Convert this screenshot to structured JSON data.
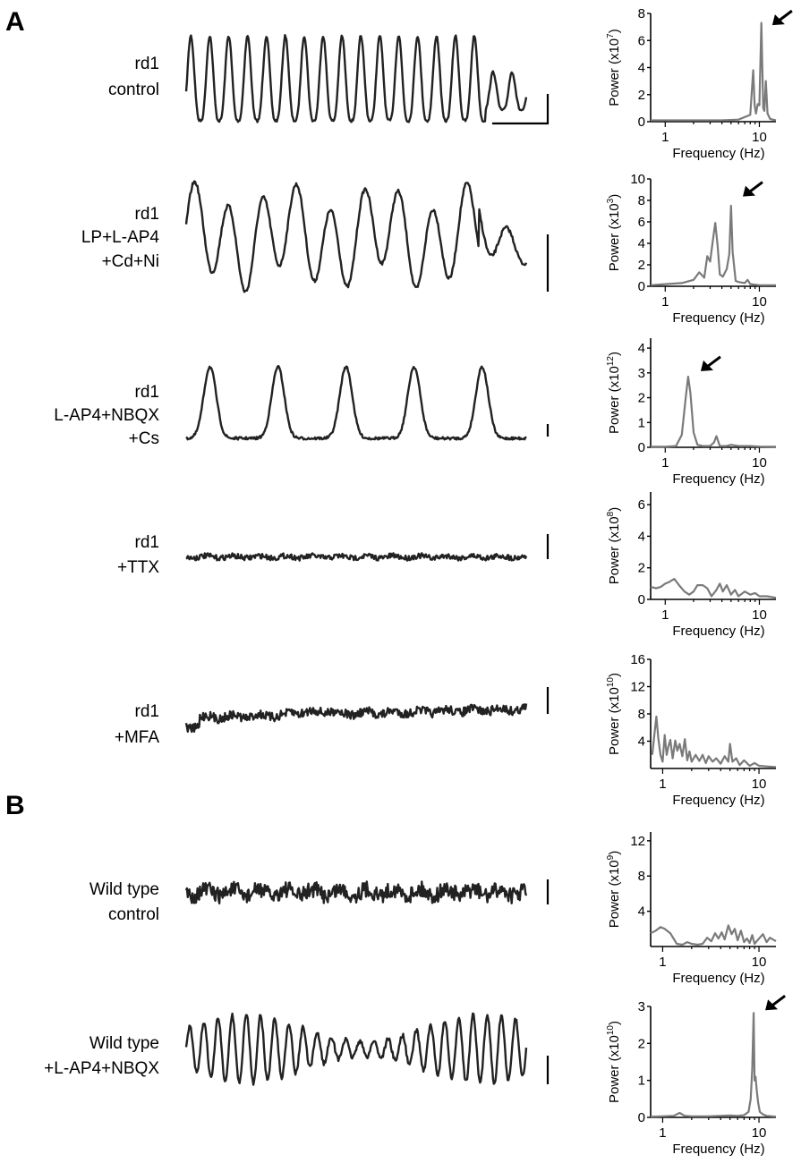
{
  "figure": {
    "panel_labels": [
      "A",
      "B"
    ]
  },
  "chart_data": [
    {
      "type": "line",
      "id": "rd1-control",
      "condition": [
        "rd1",
        "control"
      ],
      "ylabel_base": "Power (x10",
      "ylabel_exp": "7",
      "ylabel_end": ")",
      "xlabel": "Frequency (Hz)",
      "xscale": "log",
      "xlim": [
        0.7,
        15
      ],
      "xticks": [
        1,
        10
      ],
      "ylim": [
        0,
        8
      ],
      "yticks": [
        0,
        2,
        4,
        6,
        8
      ],
      "arrow_at": [
        11.5,
        7.0
      ],
      "arrow_text": "",
      "trace": {
        "kind": "osc",
        "cycles": 18,
        "burst_at_end": true
      },
      "scale_bar": "L",
      "series": [
        {
          "x": [
            0.7,
            1,
            2,
            4,
            6,
            8,
            8.6,
            8.9,
            9.2,
            9.6,
            10.0,
            10.5,
            11.0,
            11.3,
            11.7,
            12.2,
            13,
            15
          ],
          "y": [
            0.1,
            0.1,
            0.1,
            0.1,
            0.15,
            0.5,
            3.8,
            1.2,
            0.6,
            1.3,
            1.2,
            7.3,
            1.0,
            0.8,
            3.0,
            0.6,
            0.2,
            0.1
          ]
        }
      ]
    },
    {
      "type": "line",
      "id": "rd1-lp",
      "condition": [
        "rd1",
        "LP+L-AP4",
        "+Cd+Ni"
      ],
      "ylabel_base": "Power (x10",
      "ylabel_exp": "3",
      "ylabel_end": ")",
      "xlabel": "Frequency (Hz)",
      "xscale": "log",
      "xlim": [
        0.7,
        15
      ],
      "xticks": [
        1,
        10
      ],
      "ylim": [
        0,
        10
      ],
      "yticks": [
        0,
        2,
        4,
        6,
        8,
        10
      ],
      "arrow_at": [
        5.6,
        8.2
      ],
      "arrow_text": "",
      "trace": {
        "kind": "slow",
        "cycles": 10
      },
      "scale_bar": "V",
      "series": [
        {
          "x": [
            0.7,
            1,
            1.5,
            2,
            2.3,
            2.6,
            2.8,
            3.0,
            3.2,
            3.4,
            3.6,
            3.8,
            4.1,
            4.5,
            4.8,
            5.0,
            5.2,
            5.6,
            6,
            7,
            7.5,
            8,
            10,
            15
          ],
          "y": [
            0.1,
            0.2,
            0.3,
            0.6,
            1.3,
            0.8,
            2.8,
            2.3,
            4.2,
            5.9,
            3.8,
            1.1,
            0.9,
            1.6,
            3.0,
            7.5,
            3.2,
            0.5,
            0.4,
            0.3,
            0.6,
            0.2,
            0.1,
            0.1
          ]
        }
      ]
    },
    {
      "type": "line",
      "id": "rd1-lap4-nbqx",
      "condition": [
        "rd1",
        "L-AP4+NBQX",
        "+Cs"
      ],
      "ylabel_base": "Power (x10",
      "ylabel_exp": "12",
      "ylabel_end": ")",
      "xlabel": "Frequency (Hz)",
      "xscale": "log",
      "xlim": [
        0.7,
        15
      ],
      "xticks": [
        1,
        10
      ],
      "ylim": [
        0,
        4.4
      ],
      "yticks": [
        0,
        1,
        2,
        3,
        4
      ],
      "arrow_at": [
        2.0,
        3.0
      ],
      "arrow_text": "",
      "trace": {
        "kind": "wave",
        "cycles": 5
      },
      "scale_bar": "V",
      "series": [
        {
          "x": [
            0.7,
            1,
            1.3,
            1.5,
            1.65,
            1.75,
            1.85,
            2.0,
            2.2,
            2.5,
            3.0,
            3.3,
            3.5,
            3.8,
            4.5,
            5,
            6,
            8,
            10,
            15
          ],
          "y": [
            0.02,
            0.02,
            0.05,
            0.5,
            2.0,
            2.85,
            2.2,
            0.6,
            0.1,
            0.05,
            0.05,
            0.2,
            0.45,
            0.05,
            0.05,
            0.1,
            0.05,
            0.05,
            0.03,
            0.02
          ]
        }
      ]
    },
    {
      "type": "line",
      "id": "rd1-ttx",
      "condition": [
        "rd1",
        "+TTX"
      ],
      "ylabel_base": "Power (x10",
      "ylabel_exp": "8",
      "ylabel_end": ")",
      "xlabel": "Frequency (Hz)",
      "xscale": "log",
      "xlim": [
        0.7,
        15
      ],
      "xticks": [
        1,
        10
      ],
      "ylim": [
        0,
        6.8
      ],
      "yticks": [
        0,
        2,
        4,
        6
      ],
      "arrow_at": null,
      "arrow_text": "",
      "trace": {
        "kind": "flat",
        "amp": 3
      },
      "scale_bar": "V",
      "series": [
        {
          "x": [
            0.7,
            0.8,
            0.9,
            1.0,
            1.1,
            1.25,
            1.4,
            1.6,
            1.8,
            2.0,
            2.2,
            2.5,
            2.8,
            3.1,
            3.5,
            3.8,
            4.1,
            4.5,
            5,
            5.5,
            6,
            7,
            8,
            9,
            10,
            12,
            15
          ],
          "y": [
            0.8,
            0.7,
            0.8,
            1.0,
            1.1,
            1.3,
            0.9,
            0.5,
            0.3,
            0.5,
            0.9,
            0.9,
            0.7,
            0.2,
            0.6,
            1.0,
            0.5,
            0.9,
            0.3,
            0.6,
            0.2,
            0.5,
            0.3,
            0.4,
            0.2,
            0.2,
            0.1
          ]
        }
      ]
    },
    {
      "type": "line",
      "id": "rd1-mfa",
      "condition": [
        "rd1",
        "+MFA"
      ],
      "ylabel_base": "Power (x10",
      "ylabel_exp": "10",
      "ylabel_end": ")",
      "xlabel": "Frequency (Hz)",
      "xscale": "log",
      "xlim": [
        0.75,
        15
      ],
      "xticks": [
        1,
        10
      ],
      "ylim": [
        0,
        16
      ],
      "yticks": [
        4,
        8,
        12,
        16
      ],
      "arrow_at": null,
      "arrow_text": "",
      "trace": {
        "kind": "noisy",
        "amp": 5
      },
      "scale_bar": "V",
      "series": [
        {
          "x": [
            0.78,
            0.82,
            0.86,
            0.9,
            0.95,
            1.0,
            1.05,
            1.1,
            1.15,
            1.2,
            1.27,
            1.35,
            1.42,
            1.5,
            1.6,
            1.7,
            1.8,
            1.9,
            2.0,
            2.2,
            2.4,
            2.6,
            2.8,
            3.0,
            3.3,
            3.6,
            4.0,
            4.4,
            4.8,
            5.0,
            5.3,
            5.8,
            6.3,
            7,
            8,
            9,
            10,
            12,
            15
          ],
          "y": [
            2,
            5,
            7.6,
            4.5,
            2,
            1,
            4.9,
            2.0,
            3.3,
            4.2,
            1.5,
            4.1,
            2.6,
            3.6,
            1.8,
            4.3,
            1.2,
            2.5,
            1.0,
            2.0,
            1.1,
            2.0,
            0.8,
            1.8,
            1.0,
            1.5,
            0.7,
            1.8,
            1.0,
            3.6,
            1.0,
            1.5,
            0.5,
            1.2,
            0.4,
            0.8,
            0.4,
            0.3,
            0.2
          ]
        }
      ]
    },
    {
      "type": "line",
      "id": "wt-control",
      "condition": [
        "Wild type",
        "control"
      ],
      "ylabel_base": "Power (x10",
      "ylabel_exp": "9",
      "ylabel_end": ")",
      "xlabel": "Frequency (Hz)",
      "xscale": "log",
      "xlim": [
        0.75,
        15
      ],
      "xticks": [
        1,
        10
      ],
      "ylim": [
        0,
        13
      ],
      "yticks": [
        4,
        8,
        12
      ],
      "arrow_at": null,
      "arrow_text": "",
      "trace": {
        "kind": "noisy",
        "amp": 9
      },
      "scale_bar": "V",
      "series": [
        {
          "x": [
            0.75,
            0.85,
            0.95,
            1.05,
            1.2,
            1.4,
            1.6,
            1.8,
            2.0,
            2.3,
            2.6,
            2.9,
            3.2,
            3.5,
            3.8,
            4.1,
            4.4,
            4.8,
            5.2,
            5.6,
            6.0,
            6.5,
            7,
            7.5,
            8,
            8.5,
            9,
            10,
            11,
            12,
            13,
            15
          ],
          "y": [
            1.5,
            1.8,
            2.2,
            2.0,
            1.5,
            0.3,
            0.2,
            0.5,
            0.3,
            0.2,
            0.3,
            1.0,
            0.6,
            1.5,
            0.9,
            1.6,
            0.8,
            2.4,
            1.4,
            2.0,
            0.7,
            1.8,
            0.5,
            0.9,
            0.4,
            1.3,
            0.3,
            0.9,
            1.4,
            0.5,
            1.0,
            0.6
          ]
        }
      ]
    },
    {
      "type": "line",
      "id": "wt-lap4-nbqx",
      "condition": [
        "Wild type",
        "+L-AP4+NBQX"
      ],
      "ylabel_base": "Power (x10",
      "ylabel_exp": "10",
      "ylabel_end": ")",
      "xlabel": "Frequency (Hz)",
      "xscale": "log",
      "xlim": [
        0.75,
        15
      ],
      "xticks": [
        1,
        10
      ],
      "ylim": [
        0,
        3
      ],
      "yticks": [
        0,
        1,
        2,
        3
      ],
      "arrow_at": [
        9.8,
        2.85
      ],
      "arrow_text": "",
      "trace": {
        "kind": "osc2",
        "cycles": 24
      },
      "scale_bar": "V",
      "series": [
        {
          "x": [
            0.75,
            1,
            1.3,
            1.5,
            1.7,
            2,
            3,
            4,
            5,
            6,
            7,
            7.8,
            8.2,
            8.5,
            8.8,
            9.0,
            9.2,
            9.5,
            9.8,
            10.2,
            11,
            12,
            15
          ],
          "y": [
            0.02,
            0.03,
            0.04,
            0.12,
            0.04,
            0.03,
            0.03,
            0.04,
            0.05,
            0.04,
            0.06,
            0.15,
            0.5,
            1.3,
            2.82,
            1.0,
            1.1,
            0.7,
            0.4,
            0.15,
            0.08,
            0.04,
            0.02
          ]
        }
      ]
    }
  ]
}
